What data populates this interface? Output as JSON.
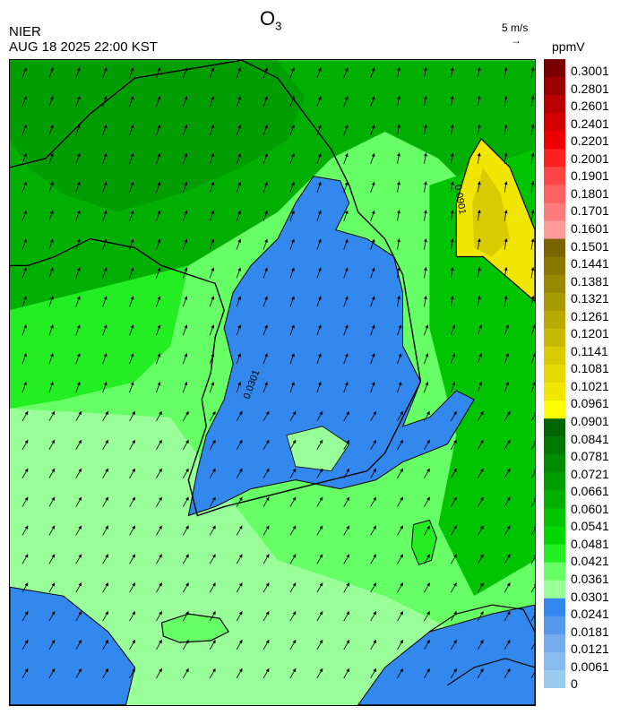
{
  "header": {
    "org": "NIER",
    "timestamp": "AUG 18 2025 22:00 KST",
    "title_main": "O",
    "title_sub": "3",
    "wind_reference": "5 m/s",
    "unit": "ppmV"
  },
  "map_labels": {
    "contour_value": "0.0301",
    "contour_value_high": "0.0901"
  },
  "legend": {
    "labels": [
      "0.3001",
      "0.2801",
      "0.2601",
      "0.2401",
      "0.2201",
      "0.2001",
      "0.1901",
      "0.1801",
      "0.1701",
      "0.1601",
      "0.1501",
      "0.1441",
      "0.1381",
      "0.1321",
      "0.1261",
      "0.1201",
      "0.1141",
      "0.1081",
      "0.1021",
      "0.0961",
      "0.0901",
      "0.0841",
      "0.0781",
      "0.0721",
      "0.0661",
      "0.0601",
      "0.0541",
      "0.0481",
      "0.0421",
      "0.0361",
      "0.0301",
      "0.0241",
      "0.0181",
      "0.0121",
      "0.0061",
      "0"
    ],
    "colors": [
      "#7a0000",
      "#9a0000",
      "#b80000",
      "#d40000",
      "#ee0000",
      "#ff2020",
      "#ff4545",
      "#ff6060",
      "#ff7a7a",
      "#ff9a9a",
      "#7a6400",
      "#8a7800",
      "#9a8800",
      "#a99a00",
      "#b8aa00",
      "#c8ba00",
      "#d8cc00",
      "#e4da00",
      "#f0e600",
      "#ffff00",
      "#006400",
      "#007a00",
      "#008c00",
      "#009e00",
      "#00b000",
      "#00c400",
      "#00d800",
      "#22ee22",
      "#66ff66",
      "#99ff99",
      "#3388ee",
      "#5599ee",
      "#77aaee",
      "#88bbee",
      "#99ccee"
    ]
  },
  "colors": {
    "land_border": "#000000",
    "ocean_green": "#66ff66",
    "low_blue": "#3388ee"
  }
}
